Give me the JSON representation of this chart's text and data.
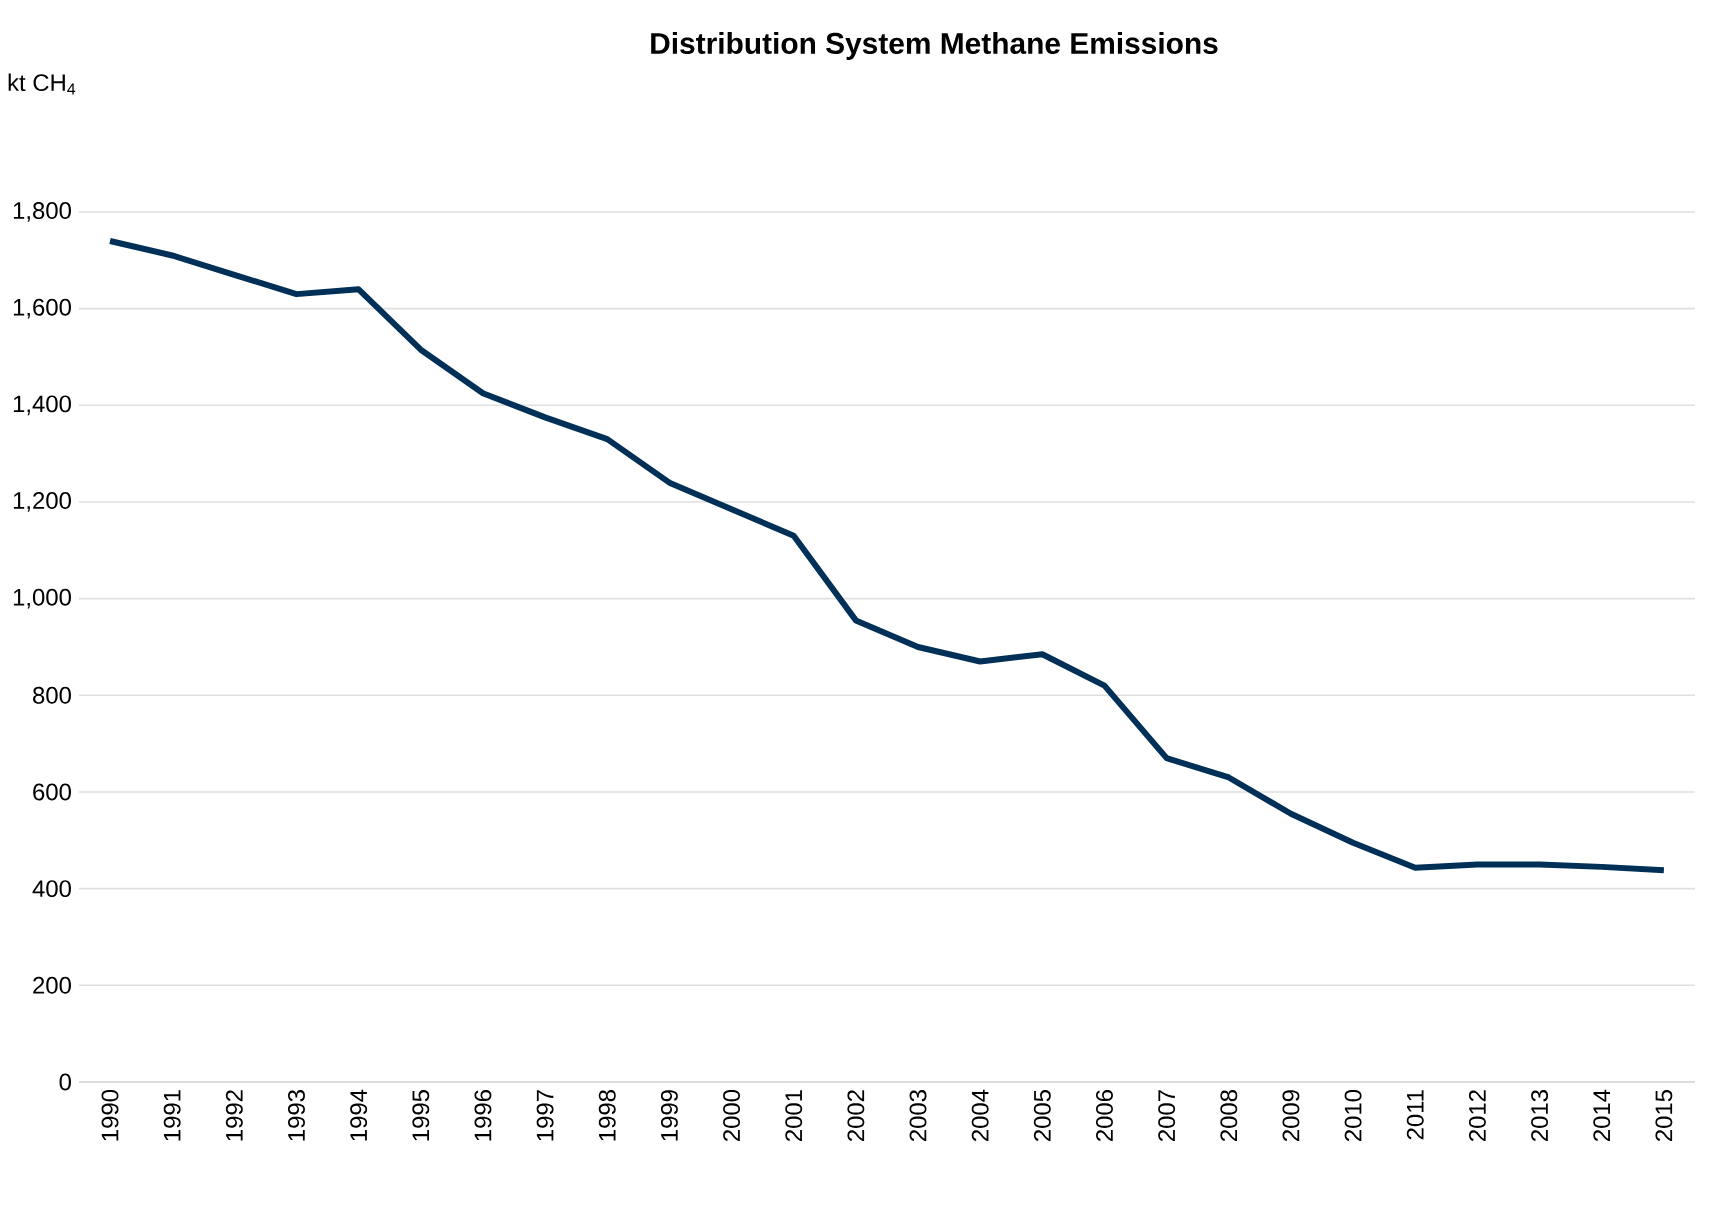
{
  "chart_data": {
    "type": "line",
    "title": "Distribution System Methane Emissions",
    "ylabel": "kt CH$_{4}$",
    "categories": [
      "1990",
      "1991",
      "1992",
      "1993",
      "1994",
      "1995",
      "1996",
      "1997",
      "1998",
      "1999",
      "2000",
      "2001",
      "2002",
      "2003",
      "2004",
      "2005",
      "2006",
      "2007",
      "2008",
      "2009",
      "2010",
      "2011",
      "2012",
      "2013",
      "2014",
      "2015"
    ],
    "series": [
      {
        "color": "#003057",
        "values": [
          1740,
          1710,
          1670,
          1630,
          1640,
          1515,
          1425,
          1375,
          1330,
          1240,
          1185,
          1130,
          955,
          900,
          870,
          885,
          820,
          670,
          630,
          555,
          495,
          443,
          450,
          450,
          445,
          438
        ]
      }
    ],
    "ylim": [
      0,
      1800
    ],
    "yticks": [
      0,
      200,
      400,
      600,
      800,
      {
        "value": 1000,
        "label": "1,000"
      },
      {
        "value": 1200,
        "label": "1,200"
      },
      {
        "value": 1400,
        "label": "1,400"
      },
      {
        "value": 1600,
        "label": "1,600"
      },
      {
        "value": 1800,
        "label": "1,800"
      }
    ],
    "grid": "y",
    "marker": "none",
    "line_style": "solid"
  }
}
